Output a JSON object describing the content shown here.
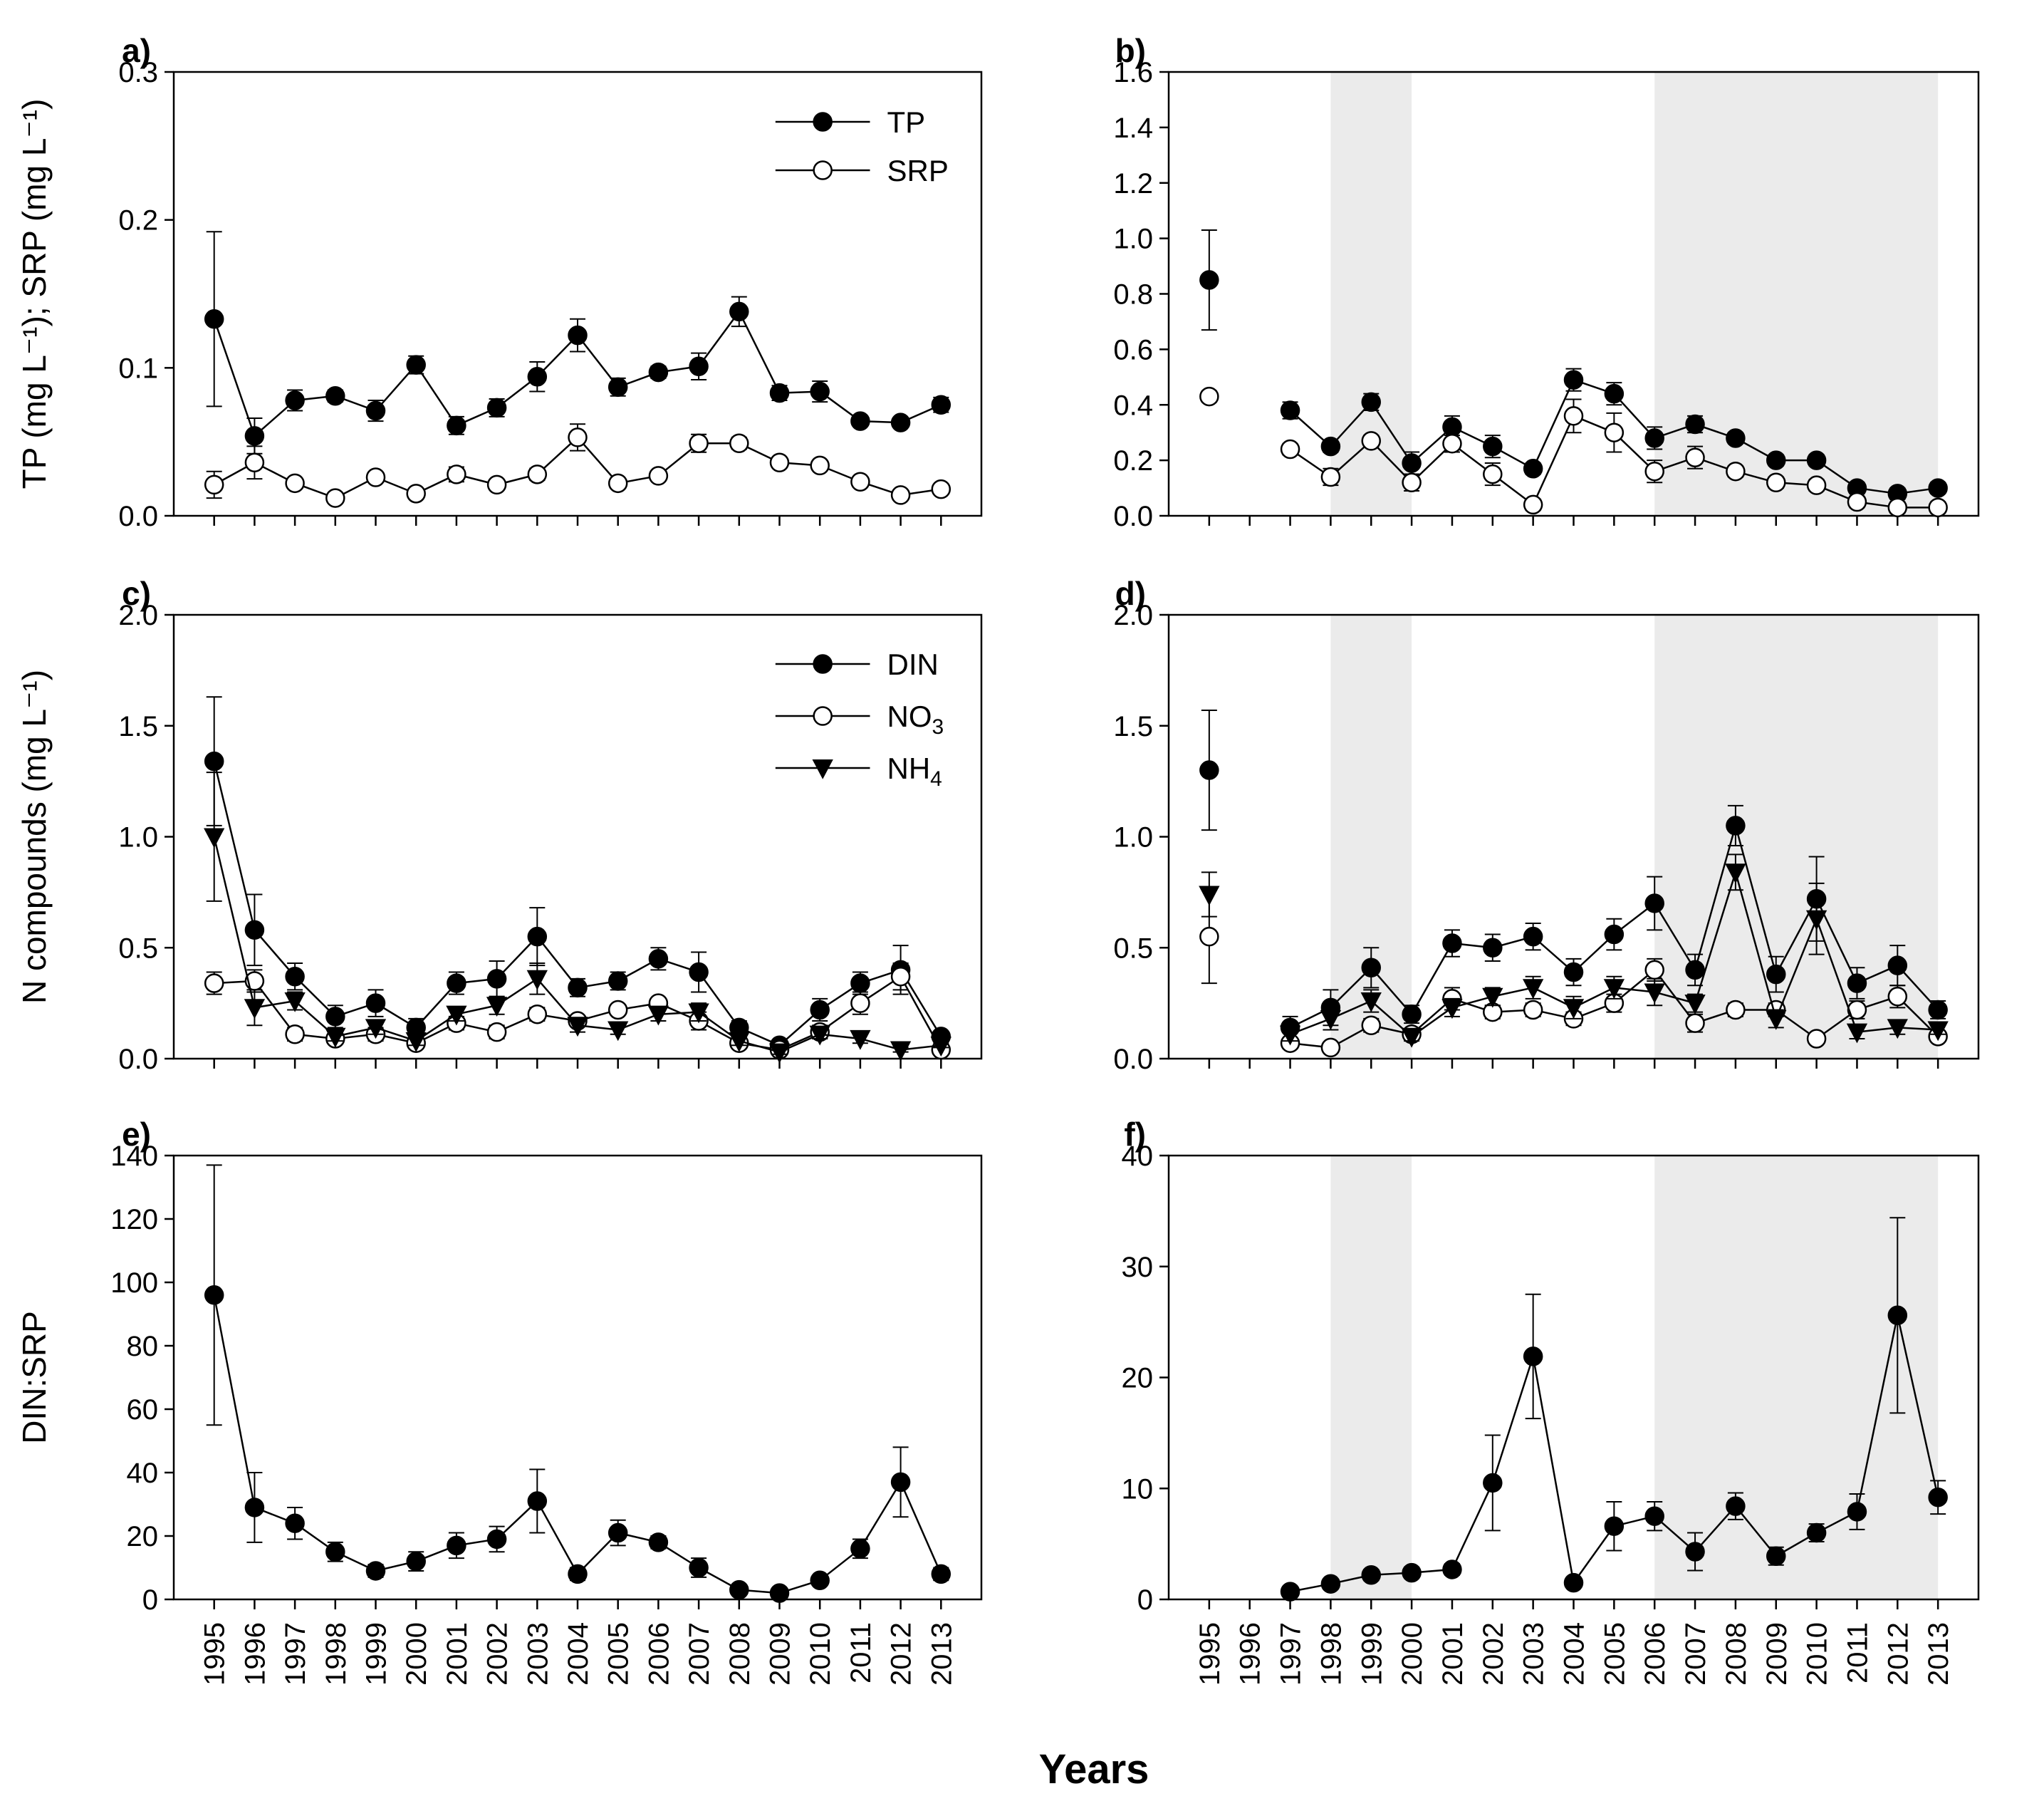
{
  "xlabel": "Years",
  "years": [
    1995,
    1996,
    1997,
    1998,
    1999,
    2000,
    2001,
    2002,
    2003,
    2004,
    2005,
    2006,
    2007,
    2008,
    2009,
    2010,
    2011,
    2012,
    2013
  ],
  "chart_data": [
    {
      "id": "a",
      "panel_label": "a)",
      "type": "line",
      "ylabel": "TP (mg L⁻¹); SRP (mg L⁻¹)",
      "ylim": [
        0,
        0.3
      ],
      "yticks": [
        "0.0",
        "0.1",
        "0.2",
        "0.3"
      ],
      "yticks_values": [
        0,
        0.1,
        0.2,
        0.3
      ],
      "legend": "top-right",
      "show_xticklabels": false,
      "shaded": [],
      "series": [
        {
          "name": "TP",
          "marker": "filled-circle",
          "x": [
            1995,
            1996,
            1997,
            1998,
            1999,
            2000,
            2001,
            2002,
            2003,
            2004,
            2005,
            2006,
            2007,
            2008,
            2009,
            2010,
            2011,
            2012,
            2013
          ],
          "values": [
            0.133,
            0.054,
            0.078,
            0.081,
            0.071,
            0.102,
            0.061,
            0.073,
            0.094,
            0.122,
            0.087,
            0.097,
            0.101,
            0.138,
            0.083,
            0.084,
            0.064,
            0.063,
            0.075
          ],
          "err": [
            0.059,
            0.012,
            0.007,
            0.004,
            0.007,
            0.006,
            0.006,
            0.006,
            0.01,
            0.011,
            0.006,
            0.004,
            0.009,
            0.01,
            0.005,
            0.007,
            0.003,
            0.003,
            0.005
          ]
        },
        {
          "name": "SRP",
          "marker": "open-circle",
          "x": [
            1995,
            1996,
            1997,
            1998,
            1999,
            2000,
            2001,
            2002,
            2003,
            2004,
            2005,
            2006,
            2007,
            2008,
            2009,
            2010,
            2011,
            2012,
            2013
          ],
          "values": [
            0.021,
            0.036,
            0.022,
            0.012,
            0.026,
            0.015,
            0.028,
            0.021,
            0.028,
            0.053,
            0.022,
            0.027,
            0.049,
            0.049,
            0.036,
            0.034,
            0.023,
            0.014,
            0.018
          ],
          "err": [
            0.009,
            0.011,
            0.003,
            0.003,
            0.003,
            0.003,
            0.005,
            0.003,
            0.004,
            0.009,
            0.003,
            0.003,
            0.006,
            0.004,
            0.003,
            0.003,
            0.003,
            0.003,
            0.003
          ]
        }
      ]
    },
    {
      "id": "b",
      "panel_label": "b)",
      "type": "line",
      "ylabel": "",
      "ylim": [
        0,
        1.6
      ],
      "yticks": [
        "0.0",
        "0.2",
        "0.4",
        "0.6",
        "0.8",
        "1.0",
        "1.2",
        "1.4",
        "1.6"
      ],
      "yticks_values": [
        0,
        0.2,
        0.4,
        0.6,
        0.8,
        1.0,
        1.2,
        1.4,
        1.6
      ],
      "legend": "",
      "show_xticklabels": false,
      "shaded": [
        [
          1998,
          2000
        ],
        [
          2006,
          2013
        ]
      ],
      "series": [
        {
          "name": "TP",
          "marker": "filled-circle",
          "x": [
            1995,
            1997,
            1998,
            1999,
            2000,
            2001,
            2002,
            2003,
            2004,
            2005,
            2006,
            2007,
            2008,
            2009,
            2010,
            2011,
            2012,
            2013
          ],
          "values": [
            0.85,
            0.38,
            0.25,
            0.41,
            0.19,
            0.32,
            0.25,
            0.17,
            0.49,
            0.44,
            0.28,
            0.33,
            0.28,
            0.2,
            0.2,
            0.1,
            0.08,
            0.1
          ],
          "err": [
            0.18,
            0.03,
            0.02,
            0.03,
            0.04,
            0.04,
            0.04,
            0.02,
            0.04,
            0.04,
            0.04,
            0.03,
            0.02,
            0.02,
            0.02,
            0.02,
            0.02,
            0.02
          ]
        },
        {
          "name": "SRP",
          "marker": "open-circle",
          "x": [
            1995,
            1997,
            1998,
            1999,
            2000,
            2001,
            2002,
            2003,
            2004,
            2005,
            2006,
            2007,
            2008,
            2009,
            2010,
            2011,
            2012,
            2013
          ],
          "values": [
            0.43,
            0.24,
            0.14,
            0.27,
            0.12,
            0.26,
            0.15,
            0.04,
            0.36,
            0.3,
            0.16,
            0.21,
            0.16,
            0.12,
            0.11,
            0.05,
            0.03,
            0.03
          ],
          "err": [
            0.02,
            0.02,
            0.03,
            0.02,
            0.03,
            0.03,
            0.04,
            0.02,
            0.06,
            0.07,
            0.04,
            0.04,
            0.02,
            0.02,
            0.02,
            0.02,
            0.02,
            0.02
          ]
        }
      ]
    },
    {
      "id": "c",
      "panel_label": "c)",
      "type": "line",
      "ylabel": "N compounds (mg L⁻¹)",
      "ylim": [
        0,
        2.0
      ],
      "yticks": [
        "0.0",
        "0.5",
        "1.0",
        "1.5",
        "2.0"
      ],
      "yticks_values": [
        0,
        0.5,
        1.0,
        1.5,
        2.0
      ],
      "legend": "top-right",
      "show_xticklabels": false,
      "shaded": [],
      "series": [
        {
          "name": "DIN",
          "marker": "filled-circle",
          "x": [
            1995,
            1996,
            1997,
            1998,
            1999,
            2000,
            2001,
            2002,
            2003,
            2004,
            2005,
            2006,
            2007,
            2008,
            2009,
            2010,
            2011,
            2012,
            2013
          ],
          "values": [
            1.34,
            0.58,
            0.37,
            0.19,
            0.25,
            0.14,
            0.34,
            0.36,
            0.55,
            0.32,
            0.35,
            0.45,
            0.39,
            0.14,
            0.06,
            0.22,
            0.34,
            0.4,
            0.1
          ],
          "err": [
            0.29,
            0.16,
            0.06,
            0.05,
            0.06,
            0.04,
            0.05,
            0.08,
            0.13,
            0.04,
            0.04,
            0.05,
            0.09,
            0.03,
            0.02,
            0.05,
            0.05,
            0.11,
            0.02
          ]
        },
        {
          "name": "NO3",
          "marker": "open-circle",
          "x": [
            1995,
            1996,
            1997,
            1998,
            1999,
            2000,
            2001,
            2002,
            2003,
            2004,
            2005,
            2006,
            2007,
            2008,
            2009,
            2010,
            2011,
            2012,
            2013
          ],
          "values": [
            0.34,
            0.35,
            0.11,
            0.09,
            0.11,
            0.07,
            0.16,
            0.12,
            0.2,
            0.17,
            0.22,
            0.25,
            0.17,
            0.07,
            0.04,
            0.12,
            0.25,
            0.37,
            0.04
          ],
          "err": [
            0.05,
            0.05,
            0.03,
            0.02,
            0.03,
            0.02,
            0.03,
            0.03,
            0.03,
            0.02,
            0.02,
            0.02,
            0.04,
            0.02,
            0.01,
            0.03,
            0.05,
            0.06,
            0.01
          ]
        },
        {
          "name": "NH4",
          "marker": "filled-triangle-down",
          "x": [
            1995,
            1996,
            1997,
            1998,
            1999,
            2000,
            2001,
            2002,
            2003,
            2004,
            2005,
            2006,
            2007,
            2008,
            2009,
            2010,
            2011,
            2012,
            2013
          ],
          "values": [
            1.0,
            0.23,
            0.26,
            0.1,
            0.14,
            0.08,
            0.2,
            0.24,
            0.36,
            0.15,
            0.13,
            0.2,
            0.21,
            0.08,
            0.03,
            0.11,
            0.09,
            0.04,
            0.06
          ],
          "err": [
            0.29,
            0.08,
            0.04,
            0.02,
            0.03,
            0.02,
            0.03,
            0.04,
            0.07,
            0.03,
            0.02,
            0.03,
            0.04,
            0.02,
            0.01,
            0.02,
            0.02,
            0.01,
            0.01
          ]
        }
      ]
    },
    {
      "id": "d",
      "panel_label": "d)",
      "type": "line",
      "ylabel": "",
      "ylim": [
        0,
        2.0
      ],
      "yticks": [
        "0.0",
        "0.5",
        "1.0",
        "1.5",
        "2.0"
      ],
      "yticks_values": [
        0,
        0.5,
        1.0,
        1.5,
        2.0
      ],
      "legend": "",
      "show_xticklabels": false,
      "shaded": [
        [
          1998,
          2000
        ],
        [
          2006,
          2013
        ]
      ],
      "series": [
        {
          "name": "DIN",
          "marker": "filled-circle",
          "x": [
            1995,
            1997,
            1998,
            1999,
            2000,
            2001,
            2002,
            2003,
            2004,
            2005,
            2006,
            2007,
            2008,
            2009,
            2010,
            2011,
            2012,
            2013
          ],
          "values": [
            1.3,
            0.14,
            0.23,
            0.41,
            0.2,
            0.52,
            0.5,
            0.55,
            0.39,
            0.56,
            0.7,
            0.4,
            1.05,
            0.38,
            0.72,
            0.34,
            0.42,
            0.22
          ],
          "err": [
            0.27,
            0.05,
            0.08,
            0.09,
            0.04,
            0.06,
            0.06,
            0.06,
            0.06,
            0.07,
            0.12,
            0.07,
            0.09,
            0.08,
            0.19,
            0.07,
            0.09,
            0.04
          ]
        },
        {
          "name": "NO3",
          "marker": "open-circle",
          "x": [
            1995,
            1997,
            1998,
            1999,
            2000,
            2001,
            2002,
            2003,
            2004,
            2005,
            2006,
            2007,
            2008,
            2009,
            2010,
            2011,
            2012,
            2013
          ],
          "values": [
            0.55,
            0.07,
            0.05,
            0.15,
            0.11,
            0.27,
            0.21,
            0.22,
            0.18,
            0.25,
            0.4,
            0.16,
            0.22,
            0.22,
            0.09,
            0.22,
            0.28,
            0.1
          ],
          "err": [
            0.21,
            0.02,
            0.02,
            0.03,
            0.02,
            0.05,
            0.03,
            0.03,
            0.03,
            0.04,
            0.05,
            0.04,
            0.03,
            0.03,
            0.02,
            0.04,
            0.05,
            0.02
          ]
        },
        {
          "name": "NH4",
          "marker": "filled-triangle-down",
          "x": [
            1995,
            1997,
            1998,
            1999,
            2000,
            2001,
            2002,
            2003,
            2004,
            2005,
            2006,
            2007,
            2008,
            2009,
            2010,
            2011,
            2012,
            2013
          ],
          "values": [
            0.74,
            0.11,
            0.18,
            0.26,
            0.1,
            0.23,
            0.28,
            0.32,
            0.23,
            0.32,
            0.3,
            0.25,
            0.84,
            0.18,
            0.63,
            0.12,
            0.14,
            0.13
          ],
          "err": [
            0.1,
            0.03,
            0.05,
            0.05,
            0.02,
            0.04,
            0.04,
            0.05,
            0.05,
            0.05,
            0.06,
            0.04,
            0.08,
            0.04,
            0.16,
            0.03,
            0.03,
            0.02
          ]
        }
      ]
    },
    {
      "id": "e",
      "panel_label": "e)",
      "type": "line",
      "ylabel": "DIN:SRP",
      "ylim": [
        0,
        140
      ],
      "yticks": [
        "0",
        "20",
        "40",
        "60",
        "80",
        "100",
        "120",
        "140"
      ],
      "yticks_values": [
        0,
        20,
        40,
        60,
        80,
        100,
        120,
        140
      ],
      "legend": "",
      "show_xticklabels": true,
      "shaded": [],
      "series": [
        {
          "name": "DIN:SRP",
          "marker": "filled-circle",
          "x": [
            1995,
            1996,
            1997,
            1998,
            1999,
            2000,
            2001,
            2002,
            2003,
            2004,
            2005,
            2006,
            2007,
            2008,
            2009,
            2010,
            2011,
            2012,
            2013
          ],
          "values": [
            96,
            29,
            24,
            15,
            9,
            12,
            17,
            19,
            31,
            8,
            21,
            18,
            10,
            3,
            2,
            6,
            16,
            37,
            8
          ],
          "err": [
            41,
            11,
            5,
            3,
            2,
            3,
            4,
            4,
            10,
            2,
            4,
            2,
            3,
            1,
            1,
            1,
            3,
            11,
            2
          ]
        }
      ]
    },
    {
      "id": "f",
      "panel_label": "f)",
      "type": "line",
      "ylabel": "",
      "ylim": [
        0,
        40
      ],
      "yticks": [
        "0",
        "10",
        "20",
        "30",
        "40"
      ],
      "yticks_values": [
        0,
        10,
        20,
        30,
        40
      ],
      "legend": "",
      "show_xticklabels": true,
      "shaded": [
        [
          1998,
          2000
        ],
        [
          2006,
          2013
        ]
      ],
      "series": [
        {
          "name": "DIN:SRP",
          "marker": "filled-circle",
          "x": [
            1997,
            1998,
            1999,
            2000,
            2001,
            2002,
            2003,
            2004,
            2005,
            2006,
            2007,
            2008,
            2009,
            2010,
            2011,
            2012,
            2013
          ],
          "values": [
            0.7,
            1.4,
            2.2,
            2.4,
            2.7,
            10.5,
            21.9,
            1.5,
            6.6,
            7.5,
            4.3,
            8.4,
            3.9,
            6.0,
            7.9,
            25.6,
            9.2
          ],
          "err": [
            0.2,
            0.3,
            0.5,
            0.5,
            0.5,
            4.3,
            5.6,
            0.3,
            2.2,
            1.3,
            1.7,
            1.2,
            0.8,
            0.8,
            1.6,
            8.8,
            1.5
          ]
        }
      ]
    }
  ],
  "legends": {
    "a": [
      {
        "name": "TP",
        "label": "TP",
        "marker": "filled-circle"
      },
      {
        "name": "SRP",
        "label": "SRP",
        "marker": "open-circle"
      }
    ],
    "c": [
      {
        "name": "DIN",
        "label": "DIN",
        "sub": "",
        "marker": "filled-circle"
      },
      {
        "name": "NO3",
        "label": "NO",
        "sub": "3",
        "marker": "open-circle"
      },
      {
        "name": "NH4",
        "label": "NH",
        "sub": "4",
        "marker": "filled-triangle-down"
      }
    ]
  },
  "colors": {
    "shade": "#ebebeb",
    "ink": "#000000",
    "open_fill": "#ffffff"
  }
}
